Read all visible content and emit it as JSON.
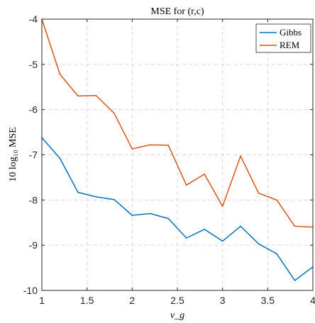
{
  "chart_data": {
    "type": "line",
    "title": "MSE for (r,c)",
    "xlabel": "ν_g",
    "ylabel": "10 log₁₀ MSE",
    "xlim": [
      1,
      4
    ],
    "ylim": [
      -10,
      -4
    ],
    "xticks": [
      1,
      1.5,
      2,
      2.5,
      3,
      3.5,
      4
    ],
    "xtick_labels": [
      "1",
      "1.5",
      "2",
      "2.5",
      "3",
      "3.5",
      "4"
    ],
    "yticks": [
      -10,
      -9,
      -8,
      -7,
      -6,
      -5,
      -4
    ],
    "ytick_labels": [
      "-10",
      "-9",
      "-8",
      "-7",
      "-6",
      "-5",
      "-4"
    ],
    "grid": true,
    "legend_position": "top-right",
    "x": [
      1,
      1.2,
      1.4,
      1.6,
      1.8,
      2,
      2.2,
      2.4,
      2.6,
      2.8,
      3,
      3.2,
      3.4,
      3.6,
      3.8,
      4
    ],
    "series": [
      {
        "name": "Gibbs",
        "color": "#0072BD",
        "values": [
          -6.62,
          -7.08,
          -7.83,
          -7.93,
          -7.99,
          -8.34,
          -8.3,
          -8.41,
          -8.84,
          -8.65,
          -8.91,
          -8.58,
          -8.97,
          -9.19,
          -9.78,
          -9.48
        ]
      },
      {
        "name": "REM",
        "color": "#D95319",
        "values": [
          -4.0,
          -5.22,
          -5.7,
          -5.69,
          -6.08,
          -6.87,
          -6.78,
          -6.79,
          -7.67,
          -7.43,
          -8.14,
          -7.03,
          -7.85,
          -8.0,
          -8.58,
          -8.6
        ]
      }
    ]
  }
}
